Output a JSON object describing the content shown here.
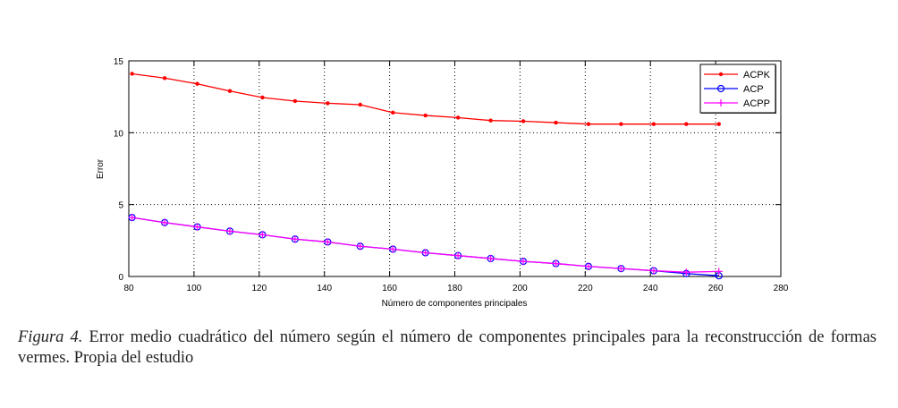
{
  "chart_data": {
    "type": "line",
    "title": "",
    "xlabel": "Número de componentes principales",
    "ylabel": "Error",
    "xlim": [
      80,
      280
    ],
    "ylim": [
      0,
      15
    ],
    "xticks": [
      80,
      100,
      120,
      140,
      160,
      180,
      200,
      220,
      240,
      260,
      280
    ],
    "yticks": [
      0,
      5,
      10,
      15
    ],
    "grid": true,
    "legend_position": "upper right",
    "x": [
      81,
      91,
      101,
      111,
      121,
      131,
      141,
      151,
      161,
      171,
      181,
      191,
      201,
      211,
      221,
      231,
      241,
      251,
      261
    ],
    "series": [
      {
        "name": "ACPK",
        "color": "#ff0000",
        "marker": "dot",
        "values": [
          14.1,
          13.8,
          13.4,
          12.9,
          12.45,
          12.2,
          12.05,
          11.95,
          11.4,
          11.2,
          11.05,
          10.85,
          10.8,
          10.7,
          10.6,
          10.6,
          10.6,
          10.6,
          10.6
        ]
      },
      {
        "name": "ACP",
        "color": "#0000ff",
        "marker": "circle",
        "values": [
          4.1,
          3.75,
          3.45,
          3.15,
          2.9,
          2.6,
          2.4,
          2.1,
          1.9,
          1.65,
          1.45,
          1.25,
          1.05,
          0.9,
          0.7,
          0.55,
          0.4,
          0.2,
          0.05
        ]
      },
      {
        "name": "ACPP",
        "color": "#ff00ff",
        "marker": "plus",
        "values": [
          4.1,
          3.75,
          3.45,
          3.15,
          2.9,
          2.6,
          2.4,
          2.1,
          1.9,
          1.65,
          1.45,
          1.25,
          1.05,
          0.9,
          0.7,
          0.55,
          0.4,
          0.3,
          0.35
        ]
      }
    ]
  },
  "caption": {
    "label": "Figura 4.",
    "text": " Error medio cuadrático del número según el número de componentes principales para la reconstrucción de formas vermes. Propia del estudio"
  }
}
